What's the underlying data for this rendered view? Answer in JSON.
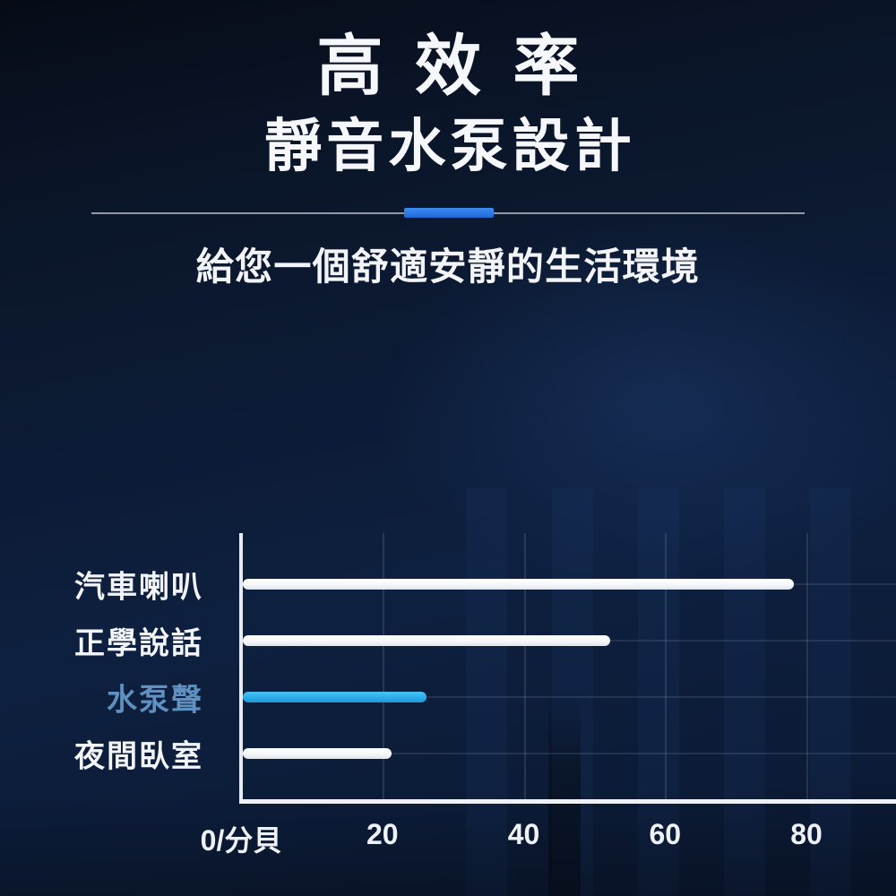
{
  "header": {
    "title": "高效率",
    "subtitle": "靜音水泵設計",
    "tagline": "給您一個舒適安靜的生活環境"
  },
  "colors": {
    "background": "#0c1b35",
    "accent_blue": "#2a79e4",
    "bar_white": "#f4f6f9",
    "bar_blue": "#2badea",
    "highlight_label_blue": "#6090c0",
    "divider_line": "#919aa9"
  },
  "chart_data": {
    "type": "bar",
    "orientation": "horizontal",
    "title": "",
    "xlabel": "分貝",
    "categories": [
      "汽車喇叭",
      "正學說話",
      "水泵聲",
      "夜間臥室"
    ],
    "values": [
      78,
      52,
      26,
      21
    ],
    "highlight_index": 2,
    "x_ticks": [
      0,
      20,
      40,
      60,
      80
    ],
    "x_tick_labels": [
      "0/分貝",
      "20",
      "40",
      "60",
      "80"
    ],
    "xlim": [
      0,
      92
    ],
    "grid": true,
    "legend": false
  }
}
